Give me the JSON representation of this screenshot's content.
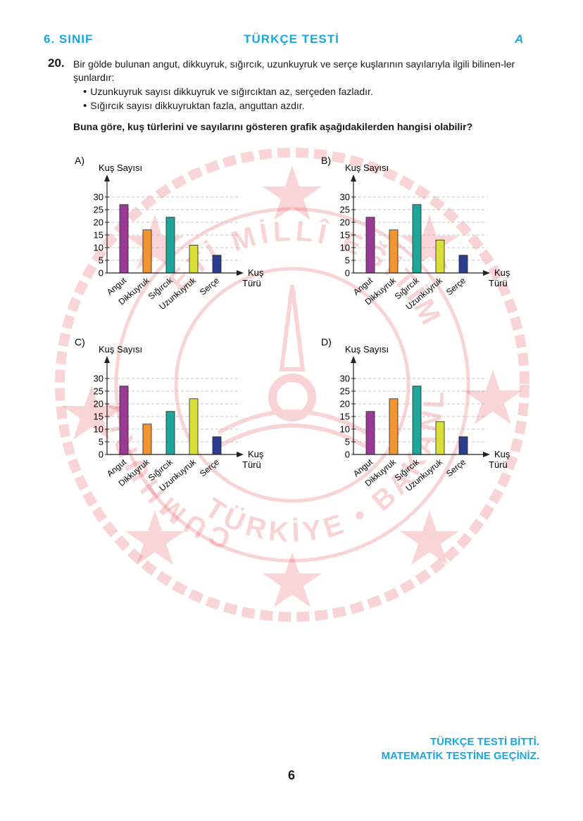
{
  "header": {
    "grade": "6. SINIF",
    "title": "TÜRKÇE TESTİ",
    "booklet": "A"
  },
  "question": {
    "number": "20.",
    "text": "Bir gölde bulunan angut, dikkuyruk, sığırcık, uzunkuyruk ve serçe kuşlarının sayılarıyla ilgili bilinen-ler şunlardır:",
    "bullets": [
      "Uzunkuyruk sayısı dikkuyruk ve sığırcıktan az, serçeden fazladır.",
      "Sığırcık sayısı dikkuyruktan fazla, anguttan azdır."
    ],
    "ask": "Buna göre, kuş türlerini ve sayılarını gösteren grafik aşağıdakilerden hangisi olabilir?"
  },
  "watermark": {
    "top": "ETİ MİLLÎ EĞİTİM",
    "left": "CUMHURİY",
    "bottom": "TÜRKİYE • BAKANLIĞI"
  },
  "chart_data": [
    {
      "type": "bar",
      "option": "A)",
      "ylabel": "Kuş Sayısı",
      "xlabel": [
        "Kuş",
        "Türü"
      ],
      "categories": [
        "Angut",
        "Dikkuyruk",
        "Sığırcık",
        "Uzunkuyruk",
        "Serçe"
      ],
      "values": [
        27,
        17,
        22,
        11,
        7
      ],
      "colors": [
        "#9b3a96",
        "#f39433",
        "#1fa69b",
        "#d8e037",
        "#2a3d8f"
      ],
      "yticks": [
        "0",
        "5",
        "10",
        "15",
        "20",
        "25",
        "30"
      ],
      "ylim": [
        0,
        30
      ],
      "grid": true
    },
    {
      "type": "bar",
      "option": "B)",
      "ylabel": "Kuş Sayısı",
      "xlabel": [
        "Kuş",
        "Türü"
      ],
      "categories": [
        "Angut",
        "Dikkuyruk",
        "Sığırcık",
        "Uzunkuyruk",
        "Serçe"
      ],
      "values": [
        22,
        17,
        27,
        13,
        7
      ],
      "colors": [
        "#9b3a96",
        "#f39433",
        "#1fa69b",
        "#d8e037",
        "#2a3d8f"
      ],
      "yticks": [
        "0",
        "5",
        "10",
        "15",
        "20",
        "25",
        "30"
      ],
      "ylim": [
        0,
        30
      ],
      "grid": true
    },
    {
      "type": "bar",
      "option": "C)",
      "ylabel": "Kuş Sayısı",
      "xlabel": [
        "Kuş",
        "Türü"
      ],
      "categories": [
        "Angut",
        "Dikkuyruk",
        "Sığırcık",
        "Uzunkuyruk",
        "Serçe"
      ],
      "values": [
        27,
        12,
        17,
        22,
        7
      ],
      "colors": [
        "#9b3a96",
        "#f39433",
        "#1fa69b",
        "#d8e037",
        "#2a3d8f"
      ],
      "yticks": [
        "0",
        "5",
        "10",
        "15",
        "20",
        "25",
        "30"
      ],
      "ylim": [
        0,
        30
      ],
      "grid": true
    },
    {
      "type": "bar",
      "option": "D)",
      "ylabel": "Kuş Sayısı",
      "xlabel": [
        "Kuş",
        "Türü"
      ],
      "categories": [
        "Angut",
        "Dikkuyruk",
        "Sığırcık",
        "Uzunkuyruk",
        "Serçe"
      ],
      "values": [
        17,
        22,
        27,
        13,
        7
      ],
      "colors": [
        "#9b3a96",
        "#f39433",
        "#1fa69b",
        "#d8e037",
        "#2a3d8f"
      ],
      "yticks": [
        "0",
        "5",
        "10",
        "15",
        "20",
        "25",
        "30"
      ],
      "ylim": [
        0,
        30
      ],
      "grid": true
    }
  ],
  "footer": {
    "line1": "TÜRKÇE TESTİ BİTTİ.",
    "line2": "MATEMATİK TESTİNE GEÇİNİZ."
  },
  "page_number": "6"
}
